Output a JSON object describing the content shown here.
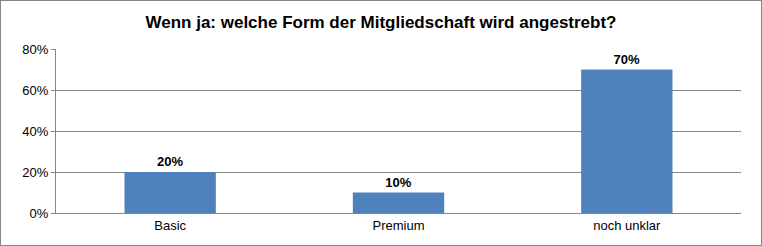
{
  "chart_data": {
    "type": "bar",
    "title": "Wenn ja: welche Form der Mitgliedschaft wird angestrebt?",
    "categories": [
      "Basic",
      "Premium",
      "noch unklar"
    ],
    "values": [
      20,
      10,
      70
    ],
    "value_labels": [
      "20%",
      "10%",
      "70%"
    ],
    "color": "#4f81bd",
    "ylim": [
      0,
      80
    ],
    "yticks": [
      {
        "value": 0,
        "label": "0%"
      },
      {
        "value": 20,
        "label": "20%"
      },
      {
        "value": 40,
        "label": "40%"
      },
      {
        "value": 60,
        "label": "60%"
      },
      {
        "value": 80,
        "label": "80%"
      }
    ],
    "grid": true,
    "data_labels": true
  }
}
